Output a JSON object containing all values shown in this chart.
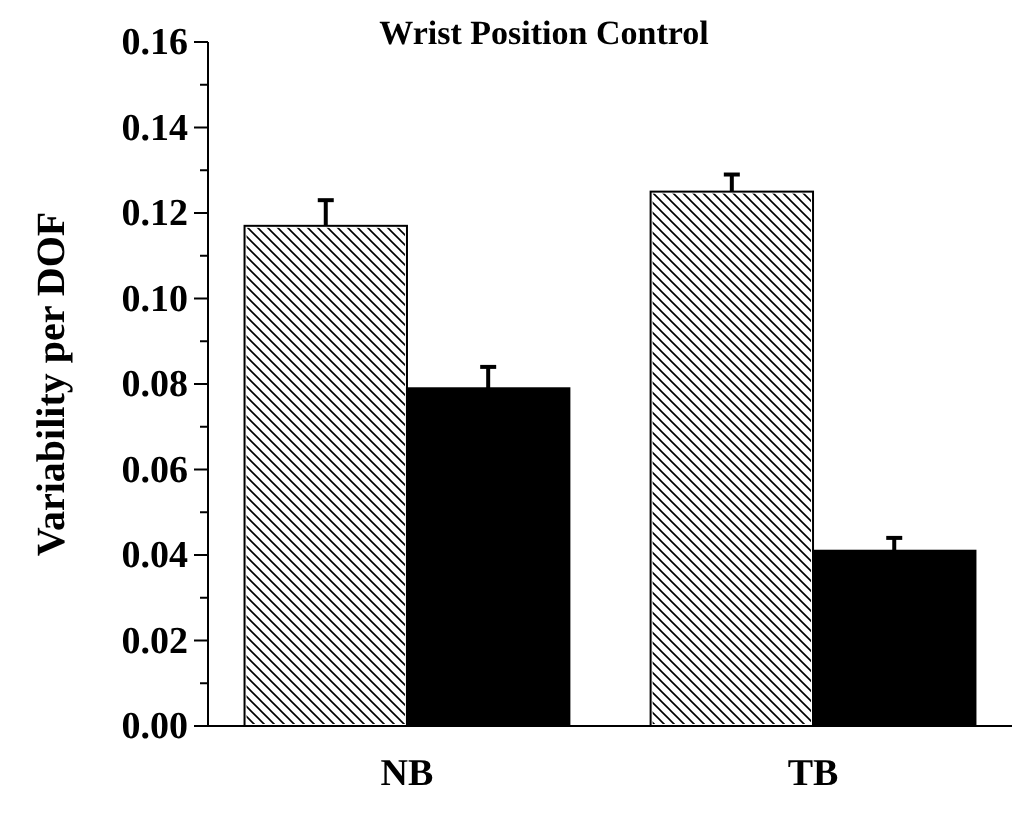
{
  "chart_data": {
    "type": "bar",
    "title": "Wrist Position Control",
    "ylabel": "Variability per DOF",
    "categories": [
      "NB",
      "TB"
    ],
    "series": [
      {
        "color": "#ffffff",
        "values": [
          0.117,
          0.125
        ],
        "errors": [
          0.006,
          0.004
        ]
      },
      {
        "color": "#000000",
        "values": [
          0.079,
          0.041
        ],
        "errors": [
          0.005,
          0.003
        ]
      }
    ],
    "ylim": [
      0,
      0.16
    ],
    "yticks": [
      {
        "value": 0,
        "label": "0.00"
      },
      {
        "value": 0.01,
        "label": null
      },
      0.02,
      {
        "value": 0.03,
        "label": null
      },
      0.04,
      {
        "value": 0.05,
        "label": null
      },
      0.06,
      {
        "value": 0.07,
        "label": null
      },
      0.08,
      {
        "value": 0.09,
        "label": null
      },
      {
        "value": 0.1,
        "label": "0.10"
      },
      {
        "value": 0.11,
        "label": null
      },
      0.12,
      {
        "value": 0.13,
        "label": null
      },
      0.14,
      {
        "value": 0.15,
        "label": null
      },
      0.16
    ],
    "grid": false
  }
}
